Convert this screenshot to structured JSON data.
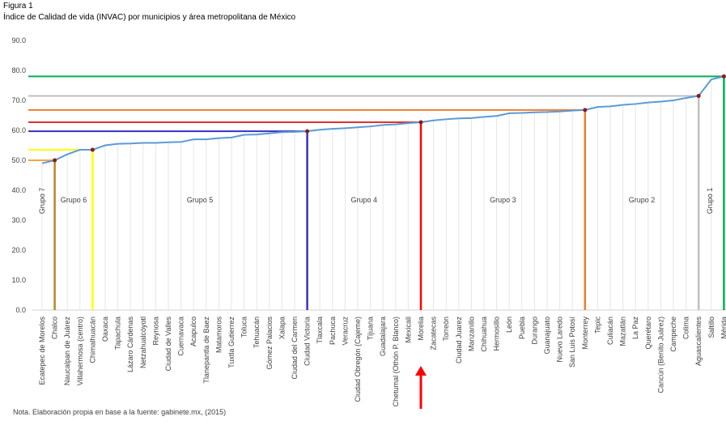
{
  "chart_data": {
    "type": "line",
    "label": "Figura 1",
    "title": "Índice de Calidad de vida (INVAC) por municipios y área metropolitana de México",
    "note": "Nota. Elaboración propia en base a la fuente: gabinete.mx, (2015)",
    "categories": [
      "Ecatepec de Morelos",
      "Chalco",
      "Naucalpan de Juárez",
      "Villahermosa (centro)",
      "Chimalhuacán",
      "Oaxaca",
      "Tapachula",
      "Lázaro Cárdenas",
      "Netzahualcóyotl",
      "Reynosa",
      "Ciudad de Valles",
      "Cuernavaca",
      "Acapulco",
      "Tlanepantla de Baez",
      "Matamoros",
      "Tuxtla Gutierrez",
      "Toluca",
      "Tehuacán",
      "Gómez Palacios",
      "Xalapa",
      "Ciudad del Carmen",
      "Ciudad Victoria",
      "Tlaxcala",
      "Pachuca",
      "Veracruz",
      "Ciudad Obregón (Cajeme)",
      "Tijuana",
      "Guadalajara",
      "Chetumal (Othón P. Blanco)",
      "Mexicali",
      "Morelia",
      "Zacatecas",
      "Torreón",
      "Ciudad Juarez",
      "Manzanillo",
      "Chihuahua",
      "Hermosillo",
      "León",
      "Puebla",
      "Durango",
      "Guanajuato",
      "Nuevo Laredo",
      "San Luis Potosí",
      "Monterrey",
      "Tepic",
      "Culiacán",
      "Mazatlán",
      "La Paz",
      "Querétaro",
      "Cancún (Benito Juárez)",
      "Campeche",
      "Colima",
      "Aguascalientes",
      "Saltillo",
      "Mérida"
    ],
    "values": [
      49,
      50,
      52,
      53.5,
      53.5,
      55,
      55.5,
      55.6,
      55.8,
      55.8,
      56,
      56.1,
      57,
      57,
      57.4,
      57.6,
      58.5,
      58.6,
      59,
      59.4,
      59.5,
      59.7,
      60.2,
      60.5,
      60.7,
      61,
      61.3,
      61.8,
      62,
      62.4,
      62.7,
      63.3,
      63.7,
      64,
      64.1,
      64.5,
      64.8,
      65.7,
      65.8,
      66,
      66.1,
      66.3,
      66.6,
      66.8,
      67.8,
      68,
      68.5,
      68.8,
      69.3,
      69.6,
      70,
      70.8,
      71.5,
      77,
      78
    ],
    "color": "#5b9bd5",
    "groups": [
      {
        "name": "Grupo 7",
        "end_index": 1,
        "color": "#b8862b",
        "line_color": "#f4a442"
      },
      {
        "name": "Grupo 6",
        "end_index": 4,
        "color": "#ffff00",
        "line_color": "#ffff00"
      },
      {
        "name": "Grupo 5",
        "end_index": 21,
        "color": "#3a2fc9",
        "line_color": "#3a2fc9"
      },
      {
        "name": "Grupo 4",
        "end_index": 30,
        "color": "#ff0000",
        "line_color": "#e03030"
      },
      {
        "name": "Grupo 3",
        "end_index": 43,
        "color": "#ed7d31",
        "line_color": "#ed7d31"
      },
      {
        "name": "Grupo 2",
        "end_index": 52,
        "color": "#bfbfbf",
        "line_color": "#bfbfbf"
      },
      {
        "name": "Grupo 1",
        "end_index": 54,
        "color": "#00b050",
        "line_color": "#00b050"
      }
    ],
    "ylim": [
      0,
      90
    ],
    "yticks": [
      {
        "value": 0,
        "label": "0.0"
      },
      {
        "value": 10,
        "label": "10.0"
      },
      {
        "value": 20,
        "label": "20.0"
      },
      {
        "value": 30,
        "label": "30.0"
      },
      {
        "value": 40,
        "label": "40.0"
      },
      {
        "value": 50,
        "label": "50.0"
      },
      {
        "value": 60,
        "label": "60.0"
      },
      {
        "value": 70,
        "label": "70.0"
      },
      {
        "value": 80,
        "label": "80.0"
      },
      {
        "value": 90,
        "label": "90.0"
      }
    ],
    "grid": true
  }
}
